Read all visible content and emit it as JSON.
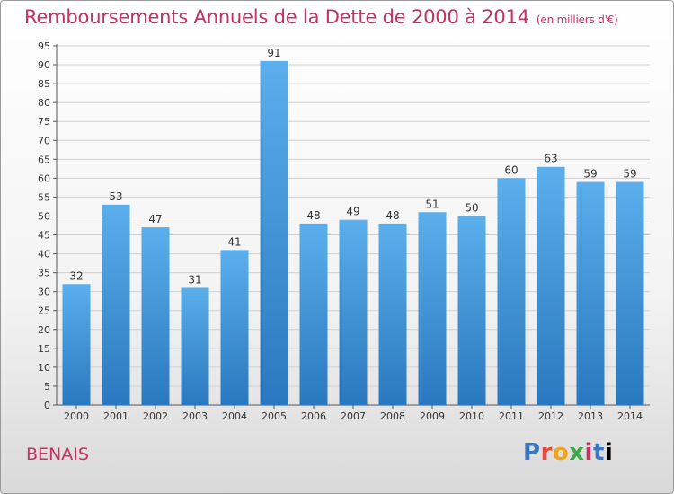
{
  "header": {
    "title": "Remboursements Annuels de la Dette de 2000 à 2014",
    "unit": "(en milliers d'€)"
  },
  "footer": {
    "commune": "BENAIS",
    "logo_letters": [
      "P",
      "r",
      "o",
      "x",
      "i",
      "t",
      "i"
    ]
  },
  "colors": {
    "title": "#c8305f",
    "bar_light": "#5aafec",
    "bar_dark": "#2a78bf",
    "grid": "#cfcfcf"
  },
  "chart_data": {
    "type": "bar",
    "title": "Remboursements Annuels de la Dette de 2000 à 2014",
    "xlabel": "",
    "ylabel": "",
    "categories": [
      "2000",
      "2001",
      "2002",
      "2003",
      "2004",
      "2005",
      "2006",
      "2007",
      "2008",
      "2009",
      "2010",
      "2011",
      "2012",
      "2013",
      "2014"
    ],
    "values": [
      32,
      53,
      47,
      31,
      41,
      91,
      48,
      49,
      48,
      51,
      50,
      60,
      63,
      59,
      59
    ],
    "ylim": [
      0,
      95
    ],
    "ytick_step": 5,
    "grid": true,
    "legend": "none"
  }
}
